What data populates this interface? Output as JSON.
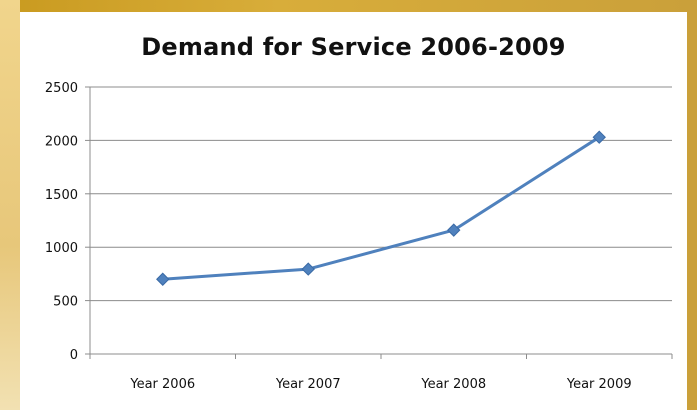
{
  "chart_data": {
    "type": "line",
    "title": "Demand for Service 2006-2009",
    "xlabel": "",
    "ylabel": "",
    "categories": [
      "Year 2006",
      "Year 2007",
      "Year 2008",
      "Year 2009"
    ],
    "series": [
      {
        "values": [
          700,
          795,
          1160,
          2030
        ],
        "color": "#4f81bd",
        "marker": "diamond"
      }
    ],
    "ylim": [
      0,
      2500
    ],
    "yticks": [
      0,
      500,
      1000,
      1500,
      2000,
      2500
    ],
    "grid": true,
    "legend": "none"
  },
  "colors": {
    "frame": "#c99a1f",
    "plot_background": "#ffffff",
    "gridline": "#8c8c8c",
    "series_line": "#4f81bd"
  }
}
